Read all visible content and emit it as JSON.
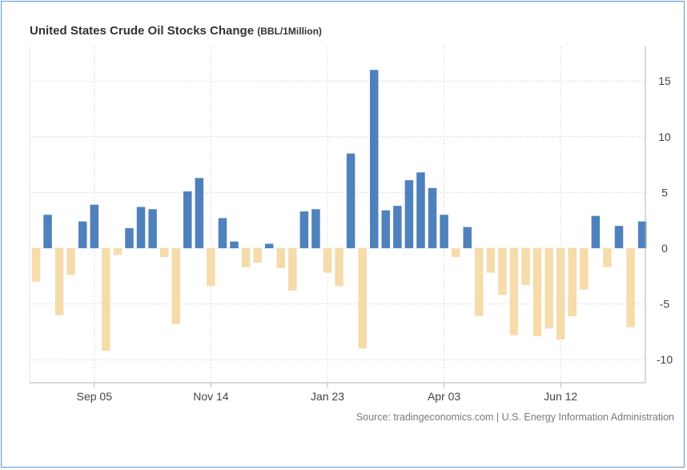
{
  "chart_data": {
    "type": "bar",
    "title": "United States Crude Oil Stocks Change",
    "title_unit": "(BBL/1Million)",
    "source": "Source: tradingeconomics.com | U.S. Energy Information Administration",
    "ylim": [
      -12,
      18
    ],
    "yticks": [
      -10,
      -5,
      0,
      5,
      10,
      15
    ],
    "x_tick_labels": [
      {
        "label": "Sep 05",
        "index": 5
      },
      {
        "label": "Nov 14",
        "index": 15
      },
      {
        "label": "Jan 23",
        "index": 25
      },
      {
        "label": "Apr 03",
        "index": 35
      },
      {
        "label": "Jun 12",
        "index": 45
      }
    ],
    "grid": true,
    "positive_color": "#4f81bd",
    "negative_color": "#f5dcaa",
    "values": [
      -3.0,
      3.0,
      -6.0,
      -2.4,
      2.4,
      3.9,
      -9.2,
      -0.6,
      1.8,
      3.7,
      3.5,
      -0.8,
      -6.8,
      5.1,
      6.3,
      -3.4,
      2.7,
      0.6,
      -1.7,
      -1.3,
      0.4,
      -1.8,
      -3.8,
      3.3,
      3.5,
      -2.2,
      -3.4,
      8.5,
      -9.0,
      16.0,
      3.4,
      3.8,
      6.1,
      6.8,
      5.4,
      3.0,
      -0.8,
      1.9,
      -6.1,
      -2.2,
      -4.2,
      -7.8,
      -3.3,
      -7.9,
      -7.2,
      -8.2,
      -6.1,
      -3.7,
      2.9,
      -1.7,
      2.0,
      -7.1,
      2.4
    ]
  }
}
